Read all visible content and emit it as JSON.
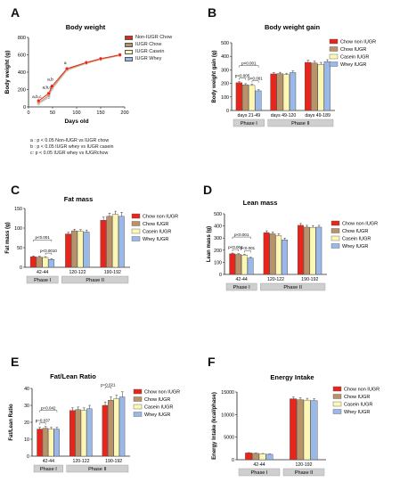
{
  "colors": {
    "chow_non_iugr": "#e8251d",
    "chow_iugr": "#b8926a",
    "casein_iugr": "#fdf7b5",
    "whey_iugr": "#9ab8e8"
  },
  "panels": [
    {
      "letter": "A"
    },
    {
      "letter": "B"
    },
    {
      "letter": "C"
    },
    {
      "letter": "D"
    },
    {
      "letter": "E"
    },
    {
      "letter": "F"
    }
  ],
  "panel_a": {
    "legend": [
      "Non-IUGR Chow",
      "IUGR Chow",
      "IUGR Casein",
      "IUGR Whey"
    ],
    "notes": [
      "a : p < 0.05 Non-IUGR vs IUGR chow",
      "b : p < 0.05 IUGR whey vs IUGR casein",
      "c: p < 0.05 IUGR whey vs IUGRchow"
    ],
    "annotations": [
      "a,b,c",
      "a,b,c",
      "a,b",
      "a"
    ]
  },
  "bar_legend": [
    "Chow non IUGR",
    "Chow IUGR",
    "Casein IUGR",
    "Whey IUGR"
  ],
  "chart_data": [
    {
      "type": "line",
      "title": "Body weight",
      "xlabel": "Days old",
      "ylabel": "Body weight (g)",
      "xlim": [
        0,
        200
      ],
      "ylim": [
        0,
        800
      ],
      "xticks": [
        0,
        50,
        100,
        150,
        200
      ],
      "yticks": [
        0,
        200,
        400,
        600,
        800
      ],
      "series": [
        {
          "name": "Non-IUGR Chow",
          "x": [
            21,
            42,
            49,
            80,
            120,
            150,
            190
          ],
          "y": [
            70,
            155,
            240,
            440,
            510,
            555,
            600
          ]
        },
        {
          "name": "IUGR Chow",
          "x": [
            21,
            42,
            49,
            80,
            120,
            150,
            190
          ],
          "y": [
            50,
            130,
            220,
            430,
            505,
            550,
            595
          ]
        },
        {
          "name": "IUGR Casein",
          "x": [
            21,
            42,
            49,
            80,
            120,
            150,
            190
          ],
          "y": [
            45,
            125,
            215,
            425,
            500,
            545,
            590
          ]
        },
        {
          "name": "IUGR Whey",
          "x": [
            21,
            42,
            49,
            80,
            120,
            150,
            190
          ],
          "y": [
            35,
            110,
            205,
            420,
            500,
            545,
            592
          ]
        }
      ]
    },
    {
      "type": "bar",
      "title": "Body weight gain",
      "ylabel": "Body weight gain (g)",
      "ylim": [
        0,
        500
      ],
      "yticks": [
        0,
        100,
        200,
        300,
        400,
        500
      ],
      "categories": [
        "days 21-49",
        "days 49-120",
        "days 49-189"
      ],
      "groups": [
        {
          "label": "Phase I",
          "span": [
            0,
            0
          ]
        },
        {
          "label": "Phase II",
          "span": [
            1,
            2
          ]
        }
      ],
      "series": [
        {
          "name": "Chow non IUGR",
          "values": [
            205,
            270,
            355
          ]
        },
        {
          "name": "Chow IUGR",
          "values": [
            190,
            272,
            350
          ]
        },
        {
          "name": "Casein IUGR",
          "values": [
            185,
            265,
            340
          ]
        },
        {
          "name": "Whey IUGR",
          "values": [
            145,
            280,
            360
          ]
        }
      ],
      "errors": [
        [
          8,
          10,
          15
        ],
        [
          8,
          10,
          15
        ],
        [
          8,
          10,
          15
        ],
        [
          8,
          12,
          15
        ]
      ],
      "pvalues": [
        {
          "label": "p<0.001",
          "cat": 0,
          "from": 0,
          "to": 3,
          "level": 2
        },
        {
          "label": "p<0.005",
          "cat": 0,
          "from": 0,
          "to": 1,
          "level": 0
        },
        {
          "label": "p<0.001",
          "cat": 0,
          "from": 2,
          "to": 3,
          "level": 0
        }
      ]
    },
    {
      "type": "bar",
      "title": "Fat mass",
      "ylabel": "Fat mass (g)",
      "ylim": [
        0,
        150
      ],
      "yticks": [
        0,
        50,
        100,
        150
      ],
      "categories": [
        "42-44",
        "120-122",
        "190-192"
      ],
      "groups": [
        {
          "label": "Phase I",
          "span": [
            0,
            0
          ]
        },
        {
          "label": "Phase II",
          "span": [
            1,
            2
          ]
        }
      ],
      "series": [
        {
          "name": "Chow non IUGR",
          "values": [
            27,
            85,
            120
          ]
        },
        {
          "name": "Chow IUGR",
          "values": [
            26,
            93,
            130
          ]
        },
        {
          "name": "Casein IUGR",
          "values": [
            25,
            92,
            135
          ]
        },
        {
          "name": "Whey IUGR",
          "values": [
            20,
            90,
            130
          ]
        }
      ],
      "errors": [
        [
          2,
          4,
          8
        ],
        [
          2,
          4,
          8
        ],
        [
          2,
          4,
          8
        ],
        [
          2,
          5,
          10
        ]
      ],
      "pvalues": [
        {
          "label": "p<0.001",
          "cat": 0,
          "from": 0,
          "to": 3,
          "level": 2
        },
        {
          "label": "p<0.0010",
          "cat": 0,
          "from": 2,
          "to": 3,
          "level": 0
        }
      ]
    },
    {
      "type": "bar",
      "title": "Lean mass",
      "ylabel": "Lean mass (g)",
      "ylim": [
        0,
        500
      ],
      "yticks": [
        0,
        100,
        200,
        300,
        400,
        500
      ],
      "categories": [
        "42-44",
        "120-122",
        "190-192"
      ],
      "groups": [
        {
          "label": "Phase I",
          "span": [
            0,
            0
          ]
        },
        {
          "label": "Phase II",
          "span": [
            1,
            2
          ]
        }
      ],
      "series": [
        {
          "name": "Chow non IUGR",
          "values": [
            170,
            345,
            405
          ]
        },
        {
          "name": "Chow IUGR",
          "values": [
            165,
            335,
            390
          ]
        },
        {
          "name": "Casein IUGR",
          "values": [
            160,
            320,
            388
          ]
        },
        {
          "name": "Whey IUGR",
          "values": [
            135,
            285,
            390
          ]
        }
      ],
      "errors": [
        [
          6,
          15,
          15
        ],
        [
          6,
          15,
          15
        ],
        [
          6,
          15,
          15
        ],
        [
          6,
          15,
          15
        ]
      ],
      "pvalues": [
        {
          "label": "p<0.001",
          "cat": 0,
          "from": 0,
          "to": 3,
          "level": 2
        },
        {
          "label": "p<0.004",
          "cat": 0,
          "from": 0,
          "to": 1,
          "level": 0
        },
        {
          "label": "p<0.001",
          "cat": 0,
          "from": 2,
          "to": 3,
          "level": 0
        }
      ]
    },
    {
      "type": "bar",
      "title": "Fat/Lean Ratio",
      "ylabel": "Fat/Lean  Ratio",
      "ylim": [
        0,
        40
      ],
      "yticks": [
        0,
        10,
        20,
        30,
        40
      ],
      "categories": [
        "42-44",
        "120-122",
        "190-192"
      ],
      "groups": [
        {
          "label": "Phase I",
          "span": [
            0,
            0
          ]
        },
        {
          "label": "Phase II",
          "span": [
            1,
            2
          ]
        }
      ],
      "series": [
        {
          "name": "Chow non IUGR",
          "values": [
            16,
            27,
            30
          ]
        },
        {
          "name": "Chow IUGR",
          "values": [
            16.5,
            27.5,
            33
          ]
        },
        {
          "name": "Casein IUGR",
          "values": [
            16,
            27,
            34
          ]
        },
        {
          "name": "Whey IUGR",
          "values": [
            16,
            28,
            35
          ]
        }
      ],
      "errors": [
        [
          1,
          1.5,
          2
        ],
        [
          1,
          1.5,
          2
        ],
        [
          1,
          1.5,
          2
        ],
        [
          1,
          2,
          3
        ]
      ],
      "pvalues": [
        {
          "label": "p=0.042",
          "cat": 0,
          "from": 0,
          "to": 3,
          "level": 2
        },
        {
          "label": "p=0.037",
          "cat": 0,
          "from": 0,
          "to": 1,
          "level": 0
        },
        {
          "label": "p=0.021",
          "cat": 2,
          "from": 0,
          "to": 1,
          "level": 1
        }
      ]
    },
    {
      "type": "bar",
      "title": "Energy Intake",
      "ylabel": "Energy Intake (kcal/phase)",
      "ylim": [
        0,
        15000
      ],
      "yticks": [
        0,
        5000,
        10000,
        15000
      ],
      "categories": [
        "42-44",
        "120-192"
      ],
      "groups": [
        {
          "label": "Phase I",
          "span": [
            0,
            0
          ]
        },
        {
          "label": "Phase II",
          "span": [
            1,
            1
          ]
        }
      ],
      "series": [
        {
          "name": "Chow non IUGR",
          "values": [
            1500,
            13500
          ]
        },
        {
          "name": "Chow IUGR",
          "values": [
            1400,
            13300
          ]
        },
        {
          "name": "Casein IUGR",
          "values": [
            1300,
            13200
          ]
        },
        {
          "name": "Whey IUGR",
          "values": [
            1200,
            13100
          ]
        }
      ],
      "errors": [
        [
          80,
          400
        ],
        [
          80,
          400
        ],
        [
          80,
          400
        ],
        [
          80,
          400
        ]
      ],
      "pvalues": []
    }
  ]
}
